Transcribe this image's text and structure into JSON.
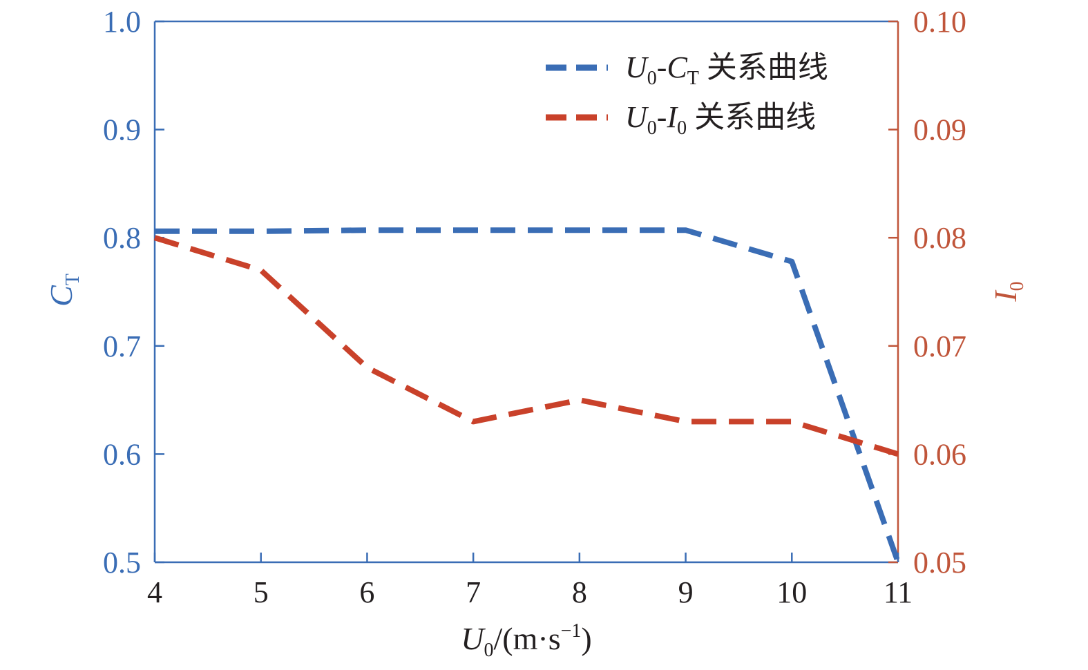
{
  "chart_data": {
    "type": "line",
    "x": [
      4,
      5,
      6,
      7,
      8,
      9,
      10,
      11
    ],
    "x_ticks": [
      "4",
      "5",
      "6",
      "7",
      "8",
      "9",
      "10",
      "11"
    ],
    "xlim": [
      4,
      11
    ],
    "y_left_ticks": [
      "0.5",
      "0.6",
      "0.7",
      "0.8",
      "0.9",
      "1.0"
    ],
    "ylim_left": [
      0.5,
      1.0
    ],
    "y_right_ticks": [
      "0.05",
      "0.06",
      "0.07",
      "0.08",
      "0.09",
      "0.10"
    ],
    "ylim_right": [
      0.05,
      0.1
    ],
    "grid": false,
    "legend_position": "top-right",
    "series": [
      {
        "name": "U0-CT 关系曲线",
        "axis": "left",
        "color": "#3a6db5",
        "style": "dashed",
        "values": [
          0.806,
          0.806,
          0.807,
          0.807,
          0.807,
          0.807,
          0.778,
          0.5
        ]
      },
      {
        "name": "U0-I0 关系曲线",
        "axis": "right",
        "color": "#c9412a",
        "style": "dashed",
        "values": [
          0.08,
          0.077,
          0.068,
          0.063,
          0.065,
          0.063,
          0.063,
          0.06
        ]
      }
    ],
    "axis_colors": {
      "left": "#3a6db5",
      "right": "#c0553a",
      "x": "#231f20"
    },
    "labels": {
      "left_main": "C",
      "left_sub": "T",
      "right_main": "I",
      "right_sub": "0",
      "x_main": "U",
      "x_sub": "0",
      "x_unit_open": "/(m·s",
      "x_unit_sup": "−1",
      "x_unit_close": ")"
    },
    "legend": [
      {
        "u": "U",
        "u_sub": "0",
        "dash": "-",
        "v": "C",
        "v_sub": "T",
        "text": " 关系曲线"
      },
      {
        "u": "U",
        "u_sub": "0",
        "dash": "-",
        "v": "I",
        "v_sub": "0",
        "text": " 关系曲线"
      }
    ]
  }
}
